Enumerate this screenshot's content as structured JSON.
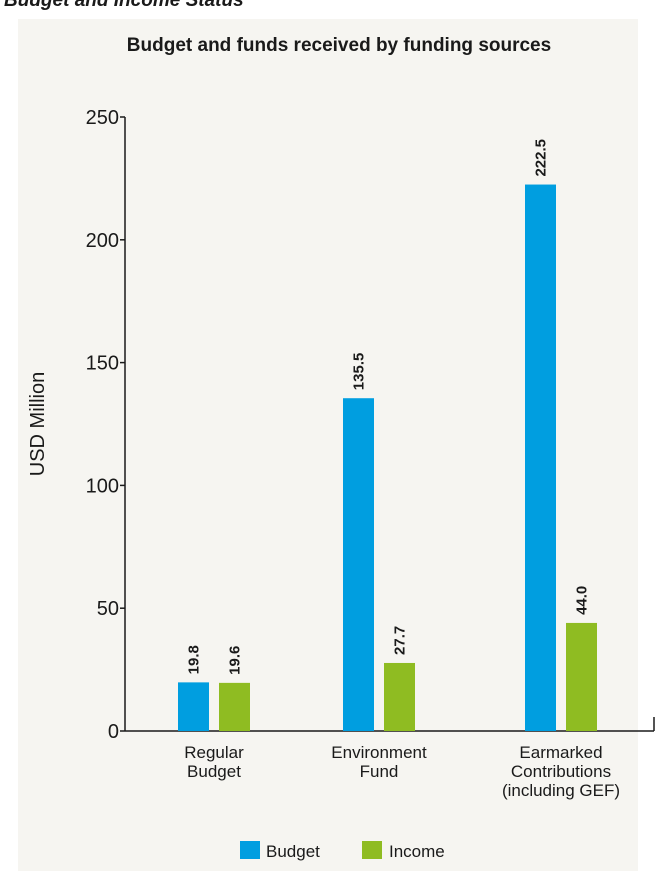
{
  "page": {
    "heading": "Budget and Income Status"
  },
  "colors": {
    "budget": "#009ee0",
    "income": "#8fbc22",
    "axis": "#1a1a1a",
    "panel": "#f6f5f1"
  },
  "chart_data": {
    "type": "bar",
    "title": "Budget and funds received by funding sources",
    "xlabel": "",
    "ylabel": "USD Million",
    "ylim": [
      0,
      250
    ],
    "yticks": [
      0,
      50,
      100,
      150,
      200,
      250
    ],
    "grid": false,
    "legend_position": "bottom",
    "categories": [
      [
        "Regular",
        "Budget"
      ],
      [
        "Environment",
        "Fund"
      ],
      [
        "Earmarked",
        "Contributions",
        "(including GEF)"
      ]
    ],
    "series": [
      {
        "name": "Budget",
        "values": [
          19.8,
          135.5,
          222.5
        ],
        "labels": [
          "19.8",
          "135.5",
          "222.5"
        ]
      },
      {
        "name": "Income",
        "values": [
          19.6,
          27.7,
          44.0
        ],
        "labels": [
          "19.6",
          "27.7",
          "44.0"
        ]
      }
    ]
  }
}
